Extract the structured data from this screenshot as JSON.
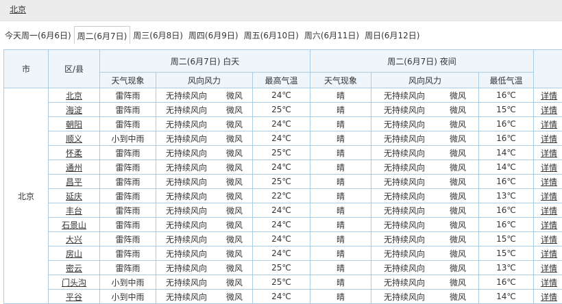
{
  "header": {
    "title": "北京"
  },
  "tabs": [
    "今天周一(6月6日)",
    "周二(6月7日)",
    "周三(6月8日)",
    "周四(6月9日)",
    "周五(6月10日)",
    "周六(6月11日)",
    "周日(6月12日)"
  ],
  "table": {
    "group_headers": [
      "市",
      "区/县",
      "周二(6月7日) 白天",
      "周二(6月7日) 夜间"
    ],
    "sub_headers": [
      "天气现象",
      "风向风力",
      "最高气温",
      "天气现象",
      "风向风力",
      "最低气温"
    ],
    "city": "北京",
    "rows": [
      [
        "北京",
        "雷阵雨",
        "无持续风向",
        "微风",
        "24℃",
        "晴",
        "无持续风向",
        "微风",
        "16℃",
        "详情"
      ],
      [
        "海淀",
        "雷阵雨",
        "无持续风向",
        "微风",
        "25℃",
        "晴",
        "无持续风向",
        "微风",
        "15℃",
        "详情"
      ],
      [
        "朝阳",
        "雷阵雨",
        "无持续风向",
        "微风",
        "24℃",
        "晴",
        "无持续风向",
        "微风",
        "16℃",
        "详情"
      ],
      [
        "顺义",
        "小到中雨",
        "无持续风向",
        "微风",
        "24℃",
        "晴",
        "无持续风向",
        "微风",
        "16℃",
        "详情"
      ],
      [
        "怀柔",
        "雷阵雨",
        "无持续风向",
        "微风",
        "25℃",
        "晴",
        "无持续风向",
        "微风",
        "14℃",
        "详情"
      ],
      [
        "通州",
        "雷阵雨",
        "无持续风向",
        "微风",
        "24℃",
        "晴",
        "无持续风向",
        "微风",
        "14℃",
        "详情"
      ],
      [
        "昌平",
        "雷阵雨",
        "无持续风向",
        "微风",
        "25℃",
        "晴",
        "无持续风向",
        "微风",
        "16℃",
        "详情"
      ],
      [
        "延庆",
        "雷阵雨",
        "无持续风向",
        "微风",
        "22℃",
        "晴",
        "无持续风向",
        "微风",
        "13℃",
        "详情"
      ],
      [
        "丰台",
        "雷阵雨",
        "无持续风向",
        "微风",
        "24℃",
        "晴",
        "无持续风向",
        "微风",
        "16℃",
        "详情"
      ],
      [
        "石景山",
        "雷阵雨",
        "无持续风向",
        "微风",
        "24℃",
        "晴",
        "无持续风向",
        "微风",
        "16℃",
        "详情"
      ],
      [
        "大兴",
        "雷阵雨",
        "无持续风向",
        "微风",
        "24℃",
        "晴",
        "无持续风向",
        "微风",
        "15℃",
        "详情"
      ],
      [
        "房山",
        "雷阵雨",
        "无持续风向",
        "微风",
        "24℃",
        "晴",
        "无持续风向",
        "微风",
        "15℃",
        "详情"
      ],
      [
        "密云",
        "雷阵雨",
        "无持续风向",
        "微风",
        "25℃",
        "晴",
        "无持续风向",
        "微风",
        "13℃",
        "详情"
      ],
      [
        "门头沟",
        "小到中雨",
        "无持续风向",
        "微风",
        "25℃",
        "晴",
        "无持续风向",
        "微风",
        "16℃",
        "详情"
      ],
      [
        "平谷",
        "小到中雨",
        "无持续风向",
        "微风",
        "24℃",
        "晴",
        "无持续风向",
        "微风",
        "14℃",
        "详情"
      ]
    ]
  }
}
